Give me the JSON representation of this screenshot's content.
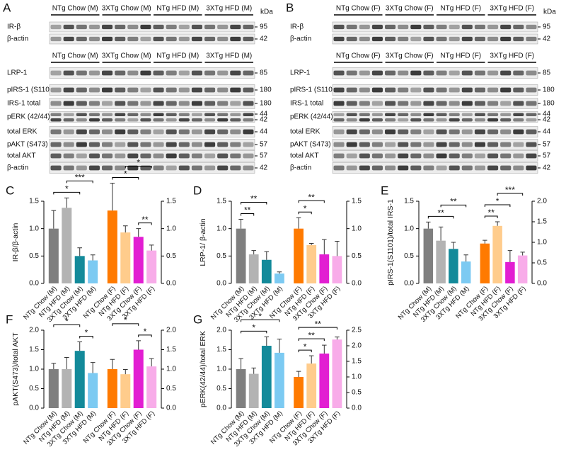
{
  "blots": [
    {
      "panel": "A",
      "kda_label": "kDa",
      "top_groups": [
        "NTg Chow (M)",
        "3XTg Chow (M)",
        "NTg HFD (M)",
        "3XTg HFD (M)"
      ],
      "top_rows": [
        {
          "label": "IR-β",
          "kda": [
            "95"
          ]
        },
        {
          "label": "β-actin",
          "kda": [
            "42"
          ]
        }
      ],
      "bottom_groups": [
        "NTg Chow (M)",
        "3XTg Chow (M)",
        "NTg HFD (M)",
        "3XTg HFD (M)"
      ],
      "bottom_rows": [
        {
          "label": "LRP-1",
          "kda": [
            "85"
          ]
        },
        {
          "label": "pIRS-1 (S1101)",
          "kda": [
            "180"
          ]
        },
        {
          "label": "IRS-1 total",
          "kda": [
            "180"
          ]
        },
        {
          "label": "pERK (42/44)",
          "kda": [
            "44",
            "42"
          ]
        },
        {
          "label": "total ERK",
          "kda": [
            "44"
          ]
        },
        {
          "label": "pAKT (S473)",
          "kda": [
            "57"
          ]
        },
        {
          "label": "total AKT",
          "kda": [
            "57"
          ]
        },
        {
          "label": "β-actin",
          "kda": [
            "42"
          ]
        }
      ]
    },
    {
      "panel": "B",
      "kda_label": "kDa",
      "top_groups": [
        "NTg Chow (F)",
        "3XTg Chow (F)",
        "NTg HFD (F)",
        "3XTg HFD (F)"
      ],
      "top_rows": [
        {
          "label": "IR-β",
          "kda": [
            "95"
          ]
        },
        {
          "label": "β-actin",
          "kda": [
            "42"
          ]
        }
      ],
      "bottom_groups": [
        "NTg Chow (F)",
        "3XTg Chow (F)",
        "NTg HFD (F)",
        "3XTg HFD (F)"
      ],
      "bottom_rows": [
        {
          "label": "LRP-1",
          "kda": [
            "85"
          ]
        },
        {
          "label": "pIRS-1 (S1101)",
          "kda": [
            "180"
          ]
        },
        {
          "label": "IRS-1 total",
          "kda": [
            "180"
          ]
        },
        {
          "label": "pERK (42/44)",
          "kda": [
            "44",
            "42"
          ]
        },
        {
          "label": "total ERK",
          "kda": [
            "44"
          ]
        },
        {
          "label": "pAKT (S473)",
          "kda": [
            "57"
          ]
        },
        {
          "label": "total AKT",
          "kda": [
            "57"
          ]
        },
        {
          "label": "β-actin",
          "kda": [
            "42"
          ]
        }
      ]
    }
  ],
  "chart_data": [
    {
      "type": "bar",
      "panel": "C",
      "ylabel": "IR-β/β-actin",
      "categories": [
        "NTg Chow (M)",
        "NTg HFD (M)",
        "3XTg Chow (M)",
        "3XTg HFD (M)",
        "NTg Chow (F)",
        "NTg HFD (F)",
        "3XTg Chow (F)",
        "3XTg HFD (F)"
      ],
      "colors": [
        "#7f7f7f",
        "#b3b3b3",
        "#138a9a",
        "#7ccaf2",
        "#ff7a00",
        "#ffcc8c",
        "#e21ed2",
        "#f8ace9"
      ],
      "ylim": [
        0,
        1.5
      ],
      "yticks": [
        {
          "value": 0,
          "label": "0.0"
        },
        0.5,
        {
          "value": 1,
          "label": "1.0"
        },
        1.5
      ],
      "y2lim": [
        0,
        1.5
      ],
      "y2ticks": [
        {
          "value": 0,
          "label": "0.0"
        },
        0.5,
        {
          "value": 1,
          "label": "1.0"
        },
        1.5
      ],
      "series": [
        {
          "values": [
            1.0,
            1.38,
            0.5,
            0.42,
            null,
            null,
            null,
            null
          ],
          "errors": [
            0.33,
            0.18,
            0.15,
            0.1,
            null,
            null,
            null,
            null
          ]
        },
        {
          "axis": "y2",
          "values": [
            null,
            null,
            null,
            null,
            1.33,
            0.93,
            0.85,
            0.6
          ],
          "errors": [
            null,
            null,
            null,
            null,
            0.5,
            0.12,
            0.15,
            0.1
          ]
        }
      ],
      "annotations": [
        {
          "text": "*",
          "between": [
            0,
            2
          ]
        },
        {
          "text": "***",
          "between": [
            1,
            3
          ]
        },
        {
          "text": "*",
          "between": [
            4,
            6
          ]
        },
        {
          "text": "*",
          "between": [
            5,
            7
          ]
        },
        {
          "text": "**",
          "between": [
            6,
            7
          ]
        }
      ]
    },
    {
      "type": "bar",
      "panel": "D",
      "ylabel": "LRP-1/ β-actin",
      "categories": [
        "NTg Chow (M)",
        "NTg HFD (M)",
        "3XTg Chow (M)",
        "3XTg HFD (M)",
        "NTg Chow (F)",
        "NTg HFD (F)",
        "3XTg Chow (F)",
        "3XTg HFD (F)"
      ],
      "colors": [
        "#7f7f7f",
        "#b3b3b3",
        "#138a9a",
        "#7ccaf2",
        "#ff7a00",
        "#ffcc8c",
        "#e21ed2",
        "#f8ace9"
      ],
      "ylim": [
        0,
        1.5
      ],
      "yticks": [
        {
          "value": 0,
          "label": "0.0"
        },
        0.5,
        {
          "value": 1,
          "label": "1.0"
        },
        1.5
      ],
      "y2lim": [
        0,
        1.5
      ],
      "y2ticks": [
        {
          "value": 0,
          "label": "0.0"
        },
        0.5,
        {
          "value": 1,
          "label": "1.0"
        },
        1.5
      ],
      "series": [
        {
          "values": [
            1.0,
            0.53,
            0.43,
            0.18,
            null,
            null,
            null,
            null
          ],
          "errors": [
            0.17,
            0.07,
            0.15,
            0.03,
            null,
            null,
            null,
            null
          ]
        },
        {
          "axis": "y2",
          "values": [
            null,
            null,
            null,
            null,
            1.0,
            0.7,
            0.53,
            0.5
          ],
          "errors": [
            null,
            null,
            null,
            null,
            0.2,
            0.03,
            0.27,
            0.27
          ]
        }
      ],
      "annotations": [
        {
          "text": "**",
          "between": [
            0,
            1
          ]
        },
        {
          "text": "**",
          "between": [
            0,
            2
          ]
        },
        {
          "text": "*",
          "between": [
            4,
            5
          ]
        },
        {
          "text": "**",
          "between": [
            4,
            6
          ]
        }
      ]
    },
    {
      "type": "bar",
      "panel": "E",
      "ylabel": "pIRS-1(S1101)/total IRS-1",
      "categories": [
        "NTg Chow (M)",
        "NTg HFD (M)",
        "3XTg Chow (M)",
        "3XTg HFD (M)",
        "NTg Chow (F)",
        "NTg HFD (F)",
        "3XTg Chow (F)",
        "3XTg HFD (F)"
      ],
      "colors": [
        "#7f7f7f",
        "#b3b3b3",
        "#138a9a",
        "#7ccaf2",
        "#ff7a00",
        "#ffcc8c",
        "#e21ed2",
        "#f8ace9"
      ],
      "ylim": [
        0,
        1.5
      ],
      "yticks": [
        {
          "value": 0,
          "label": "0.0"
        },
        0.5,
        {
          "value": 1,
          "label": "1.0"
        },
        1.5
      ],
      "y2lim": [
        0,
        2
      ],
      "y2ticks": [
        {
          "value": 0,
          "label": "0.0"
        },
        0.5,
        {
          "value": 1,
          "label": "1.0"
        },
        1.5,
        {
          "value": 2,
          "label": "2.0"
        }
      ],
      "series": [
        {
          "values": [
            1.0,
            0.78,
            0.63,
            0.4,
            null,
            null,
            null,
            null
          ],
          "errors": [
            0.12,
            0.25,
            0.12,
            0.12,
            null,
            null,
            null,
            null
          ]
        },
        {
          "axis": "y2",
          "values": [
            null,
            null,
            null,
            null,
            0.97,
            1.4,
            0.52,
            0.68
          ],
          "errors": [
            null,
            null,
            null,
            null,
            0.08,
            0.1,
            0.28,
            0.08
          ]
        }
      ],
      "annotations": [
        {
          "text": "**",
          "between": [
            0,
            2
          ]
        },
        {
          "text": "**",
          "between": [
            1,
            3
          ]
        },
        {
          "text": "**",
          "between": [
            4,
            5
          ]
        },
        {
          "text": "*",
          "between": [
            4,
            6
          ]
        },
        {
          "text": "***",
          "between": [
            5,
            7
          ]
        }
      ]
    },
    {
      "type": "bar",
      "panel": "F",
      "ylabel": "pAKT(S473)/total AKT",
      "categories": [
        "NTg Chow (M)",
        "NTg HFD (M)",
        "3XTg Chow (M)",
        "3XTg HFD (M)",
        "NTg Chow (F)",
        "NTg HFD (F)",
        "3XTg Chow (F)",
        "3XTg HFD (F)"
      ],
      "colors": [
        "#7f7f7f",
        "#b3b3b3",
        "#138a9a",
        "#7ccaf2",
        "#ff7a00",
        "#ffcc8c",
        "#e21ed2",
        "#f8ace9"
      ],
      "ylim": [
        0,
        2
      ],
      "yticks": [
        {
          "value": 0,
          "label": "0.0"
        },
        0.5,
        {
          "value": 1,
          "label": "1.0"
        },
        1.5,
        {
          "value": 2,
          "label": "2.0"
        }
      ],
      "y2lim": [
        0,
        2
      ],
      "y2ticks": [
        {
          "value": 0,
          "label": "0.0"
        },
        0.5,
        {
          "value": 1,
          "label": "1.0"
        },
        1.5,
        {
          "value": 2,
          "label": "2.0"
        }
      ],
      "series": [
        {
          "values": [
            1.0,
            1.0,
            1.47,
            0.9,
            null,
            null,
            null,
            null
          ],
          "errors": [
            0.15,
            0.3,
            0.23,
            0.27,
            null,
            null,
            null,
            null
          ]
        },
        {
          "axis": "y2",
          "values": [
            null,
            null,
            null,
            null,
            1.0,
            0.87,
            1.5,
            1.07
          ],
          "errors": [
            null,
            null,
            null,
            null,
            0.25,
            0.12,
            0.23,
            0.2
          ]
        }
      ],
      "annotations": [
        {
          "text": "*",
          "between": [
            0,
            2
          ]
        },
        {
          "text": "*",
          "between": [
            2,
            3
          ]
        },
        {
          "text": "*",
          "between": [
            4,
            6
          ]
        },
        {
          "text": "*",
          "between": [
            6,
            7
          ]
        }
      ]
    },
    {
      "type": "bar",
      "panel": "G",
      "ylabel": "pERK(42/44)/total ERK",
      "categories": [
        "NTg Chow (M)",
        "NTg HFD (M)",
        "3XTg Chow (M)",
        "3XTg HFD (M)",
        "NTg Chow (F)",
        "NTg HFD (F)",
        "3XTg Chow (F)",
        "3XTg HFD (F)"
      ],
      "colors": [
        "#7f7f7f",
        "#b3b3b3",
        "#138a9a",
        "#7ccaf2",
        "#ff7a00",
        "#ffcc8c",
        "#e21ed2",
        "#f8ace9"
      ],
      "ylim": [
        0,
        2
      ],
      "yticks": [
        {
          "value": 0,
          "label": "0.0"
        },
        0.5,
        {
          "value": 1,
          "label": "1.0"
        },
        1.5,
        {
          "value": 2,
          "label": "2.0"
        }
      ],
      "y2lim": [
        0,
        2.5
      ],
      "y2ticks": [
        {
          "value": 0,
          "label": "0.0"
        },
        0.5,
        {
          "value": 1,
          "label": "1.0"
        },
        1.5,
        {
          "value": 2,
          "label": "2.0"
        },
        2.5
      ],
      "series": [
        {
          "values": [
            1.0,
            0.88,
            1.6,
            1.42,
            null,
            null,
            null,
            null
          ],
          "errors": [
            0.27,
            0.15,
            0.23,
            0.35,
            null,
            null,
            null,
            null
          ]
        },
        {
          "axis": "y2",
          "values": [
            null,
            null,
            null,
            null,
            1.0,
            1.43,
            1.75,
            2.2
          ],
          "errors": [
            null,
            null,
            null,
            null,
            0.18,
            0.25,
            0.27,
            0.08
          ]
        }
      ],
      "annotations": [
        {
          "text": "*",
          "between": [
            0,
            2
          ]
        },
        {
          "text": "*",
          "between": [
            0,
            3
          ]
        },
        {
          "text": "*",
          "between": [
            4,
            5
          ]
        },
        {
          "text": "**",
          "between": [
            4,
            6
          ]
        },
        {
          "text": "**",
          "between": [
            4,
            7
          ]
        }
      ]
    }
  ]
}
